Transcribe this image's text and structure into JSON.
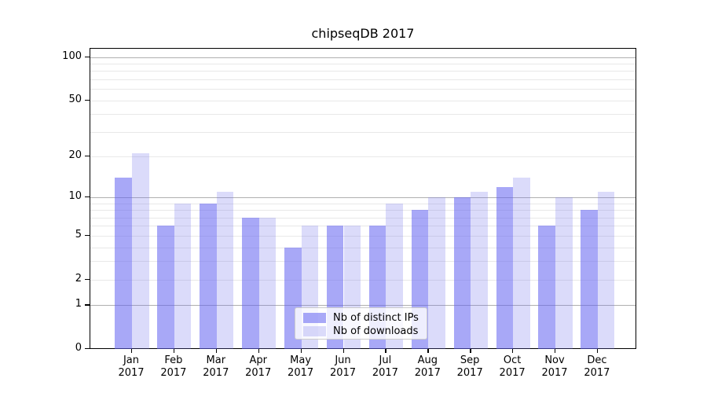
{
  "chart_data": {
    "type": "bar",
    "title": "chipseqDB 2017",
    "x_axis": {
      "categories": [
        "Jan",
        "Feb",
        "Mar",
        "Apr",
        "May",
        "Jun",
        "Jul",
        "Aug",
        "Sep",
        "Oct",
        "Nov",
        "Dec"
      ],
      "year": "2017"
    },
    "y_axis": {
      "scale": "log1p",
      "ticks": [
        0,
        1,
        2,
        5,
        10,
        20,
        50,
        100
      ],
      "range_top": 115,
      "major_grid": [
        1,
        10,
        100
      ],
      "minor_grid": [
        2,
        3,
        4,
        5,
        6,
        7,
        8,
        9,
        20,
        30,
        40,
        50,
        60,
        70,
        80,
        90
      ],
      "major_grid_color": "#b0b0b0",
      "minor_grid_color": "#e8e8e8"
    },
    "series": [
      {
        "name": "Nb of distinct IPs",
        "color": "rgba(97,97,240,0.55)",
        "values": [
          14,
          6,
          9,
          7,
          4,
          6,
          6,
          8,
          10,
          12,
          6,
          8
        ]
      },
      {
        "name": "Nb of downloads",
        "color": "rgba(111,111,235,0.25)",
        "values": [
          21,
          9,
          11,
          7,
          6,
          6,
          9,
          10,
          11,
          14,
          10,
          11
        ]
      }
    ],
    "legend": {
      "position": "lower-center"
    },
    "grid": true
  }
}
